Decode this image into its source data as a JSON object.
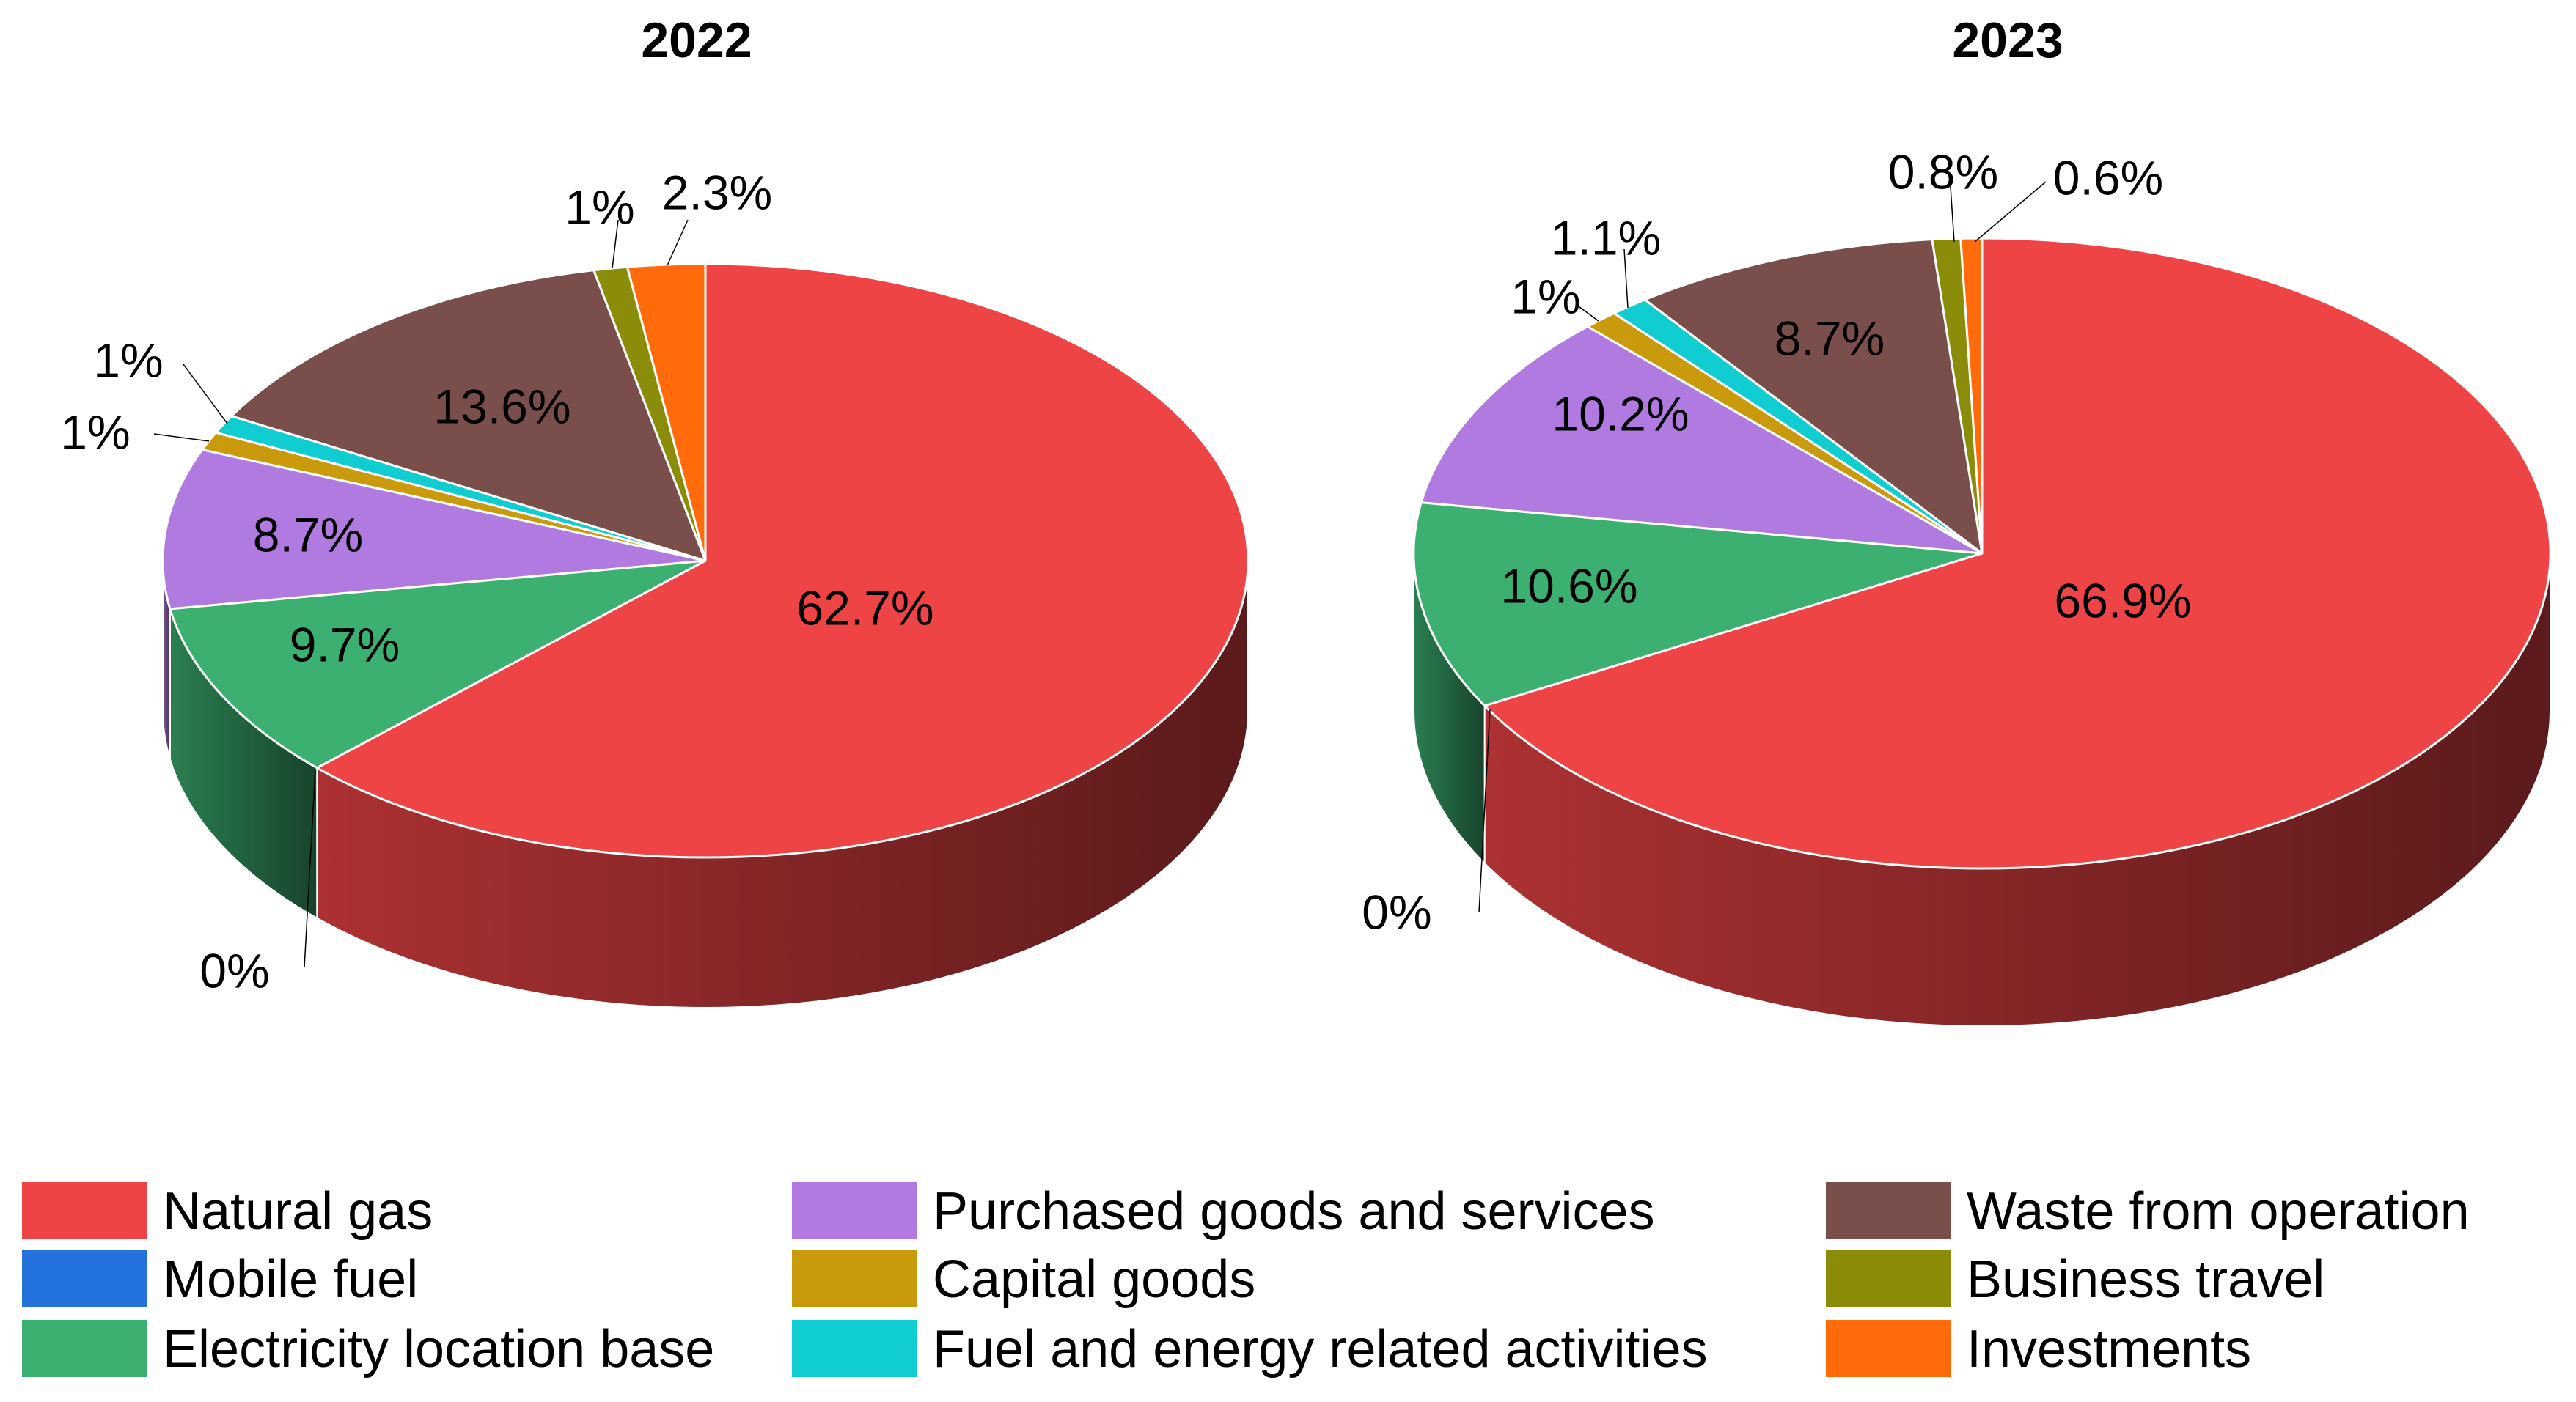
{
  "chart_data": {
    "type": "pie",
    "variant": "3d",
    "categories": [
      "Natural gas",
      "Mobile fuel",
      "Electricity location base",
      "Purchased goods and services",
      "Capital goods",
      "Fuel and energy related activities",
      "Waste from operation",
      "Business travel",
      "Investments"
    ],
    "colors": [
      "#ef4446",
      "#2271dc",
      "#3cb070",
      "#b07ae0",
      "#c99a0c",
      "#0fcdd0",
      "#7a4f4b",
      "#8a8c0a",
      "#ff6a0a"
    ],
    "pies": [
      {
        "title": "2022",
        "values": [
          62.7,
          0,
          9.7,
          8.7,
          1,
          1,
          13.6,
          1,
          2.3
        ],
        "labels": [
          "62.7%",
          "0%",
          "9.7%",
          "8.7%",
          "1%",
          "1%",
          "13.6%",
          "1%",
          "2.3%"
        ]
      },
      {
        "title": "2023",
        "values": [
          66.9,
          0,
          10.6,
          10.2,
          1,
          1.1,
          8.7,
          0.8,
          0.6
        ],
        "labels": [
          "66.9%",
          "0%",
          "10.6%",
          "10.2%",
          "1%",
          "1.1%",
          "8.7%",
          "0.8%",
          "0.6%"
        ]
      }
    ],
    "legend_position": "bottom"
  }
}
